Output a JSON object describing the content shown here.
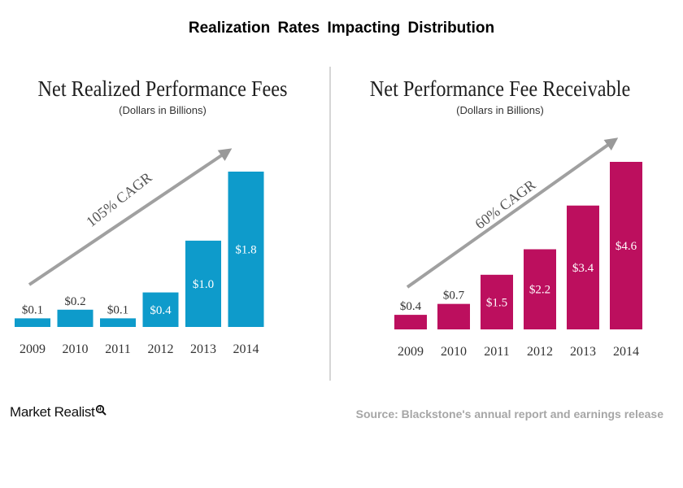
{
  "page": {
    "title": "Realization  Rates  Impacting  Distribution",
    "source": "Source: Blackstone's annual report and earnings release",
    "logo": "Market Realist"
  },
  "chart_data": [
    {
      "type": "bar",
      "title": "Net Realized Performance Fees",
      "subtitle": "(Dollars in Billions)",
      "annotation": "105% CAGR",
      "categories": [
        "2009",
        "2010",
        "2011",
        "2012",
        "2013",
        "2014"
      ],
      "values": [
        0.1,
        0.2,
        0.1,
        0.4,
        1.0,
        1.8
      ],
      "labels": [
        "$0.1",
        "$0.2",
        "$0.1",
        "$0.4",
        "$1.0",
        "$1.8"
      ],
      "ylim": [
        0,
        1.8
      ],
      "color": "#0e9bcb",
      "grid": false
    },
    {
      "type": "bar",
      "title": "Net Performance Fee Receivable",
      "subtitle": "(Dollars in Billions)",
      "annotation": "60% CAGR",
      "categories": [
        "2009",
        "2010",
        "2011",
        "2012",
        "2013",
        "2014"
      ],
      "values": [
        0.4,
        0.7,
        1.5,
        2.2,
        3.4,
        4.6
      ],
      "labels": [
        "$0.4",
        "$0.7",
        "$1.5",
        "$2.2",
        "$3.4",
        "$4.6"
      ],
      "ylim": [
        0,
        4.6
      ],
      "color": "#bc0f5e",
      "grid": false
    }
  ]
}
